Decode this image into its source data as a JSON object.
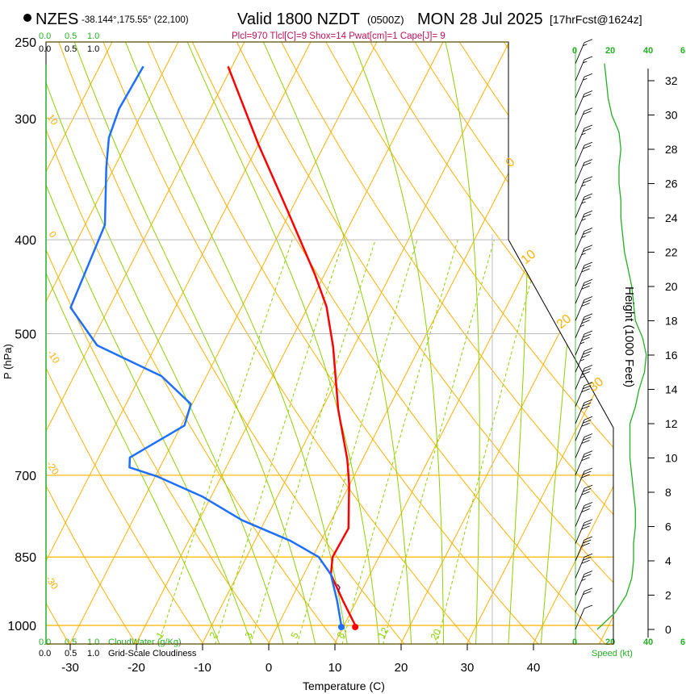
{
  "header": {
    "station": "NZES",
    "coords": "-38.144°,175.55° (22,100)",
    "valid": "Valid 1800 NZDT",
    "utc": "(0500Z)",
    "date": "MON 28 Jul 2025",
    "forecast": "[17hrFcst@1624z]",
    "indices": "Plcl=970 Tlcl[C]=9 Shox=14 Pwat[cm]=1 Cape[J]= 9"
  },
  "cloud_scale": {
    "ticks": [
      "0.0",
      "0.5",
      "1.0"
    ],
    "cloudwater_label": "CloudWater (g/Kg)",
    "cloudiness_label": "Grid-Scale Cloudiness"
  },
  "speed_scale": {
    "ticks": [
      "0",
      "20",
      "40",
      "6"
    ],
    "label": "Speed (kt)"
  },
  "colors": {
    "temperature": "#ff0000",
    "dewpoint": "#1e6fff",
    "isotherm": "#ffb000",
    "moist_adiabat": "#8cd200",
    "mixing_ratio": "#8cd200",
    "speed": "#22b022",
    "cloud_green": "#22b022"
  },
  "chart_data": {
    "type": "line",
    "title": "Skew-T log-P sounding",
    "xlabel": "Temperature (C)",
    "ylabel": "P (hPa)",
    "y2label": "Height (1000 Feet)",
    "xticks": [
      "-30",
      "-20",
      "-10",
      "0",
      "10",
      "20",
      "30",
      "40"
    ],
    "xtick_values": [
      -30,
      -20,
      -10,
      0,
      10,
      20,
      30,
      40
    ],
    "yticks": [
      "250",
      "300",
      "400",
      "500",
      "700",
      "850",
      "1000"
    ],
    "ytick_values": [
      250,
      300,
      400,
      500,
      700,
      850,
      1000
    ],
    "height_ticks": [
      "0",
      "2",
      "4",
      "6",
      "8",
      "10",
      "12",
      "14",
      "16",
      "18",
      "20",
      "22",
      "24",
      "26",
      "28",
      "30",
      "32"
    ],
    "height_tick_values": [
      0,
      2,
      4,
      6,
      8,
      10,
      12,
      14,
      16,
      18,
      20,
      22,
      24,
      26,
      28,
      30,
      32
    ],
    "isotherm_labels_left": [
      "10",
      "0",
      "-10",
      "-20",
      "-30"
    ],
    "isotherm_labels_right": [
      "0",
      "10",
      "20",
      "30"
    ],
    "mixing_ratio_labels": [
      "1",
      "2",
      "3",
      "5",
      "8",
      "12",
      "20"
    ],
    "mixing_ratio_values": [
      1,
      2,
      3,
      5,
      8,
      12,
      20
    ],
    "series": [
      {
        "name": "Temperature",
        "p": [
          1000,
          944,
          886,
          850,
          794,
          715,
          674,
          599,
          516,
          469,
          434,
          372,
          319,
          265
        ],
        "T": [
          11.7,
          8.0,
          4.1,
          3.0,
          3.2,
          -0.1,
          -2.3,
          -7.5,
          -13.1,
          -17.2,
          -21.5,
          -30.7,
          -40.0,
          -50.6
        ]
      },
      {
        "name": "Dewpoint",
        "p": [
          1000,
          944,
          886,
          850,
          818,
          779,
          736,
          702,
          687,
          671,
          622,
          591,
          553,
          514,
          470,
          386,
          337,
          314,
          293,
          265
        ],
        "T": [
          9.6,
          7.1,
          4.1,
          0.9,
          -4.6,
          -13.5,
          -21.4,
          -29.7,
          -34.6,
          -35.3,
          -29.5,
          -30.2,
          -36.8,
          -48.9,
          -55.8,
          -57.0,
          -61.2,
          -63.1,
          -63.8,
          -63.4
        ]
      }
    ],
    "wind": {
      "height_kft": [
        0,
        1,
        2,
        3,
        4,
        5,
        6,
        7,
        8,
        9,
        10,
        11,
        12,
        13,
        14,
        15,
        16,
        17,
        18,
        19,
        20,
        21,
        22,
        23,
        24,
        25,
        26,
        27,
        28,
        29,
        30,
        31,
        32,
        33
      ],
      "speed_kt": [
        12,
        22,
        28,
        31,
        32,
        32,
        33,
        33,
        32,
        31,
        30,
        30,
        30,
        33,
        35,
        38,
        39,
        37,
        33,
        32,
        31,
        29,
        27,
        26,
        25,
        25,
        24,
        24,
        25,
        24,
        20,
        18,
        17,
        16
      ]
    }
  }
}
